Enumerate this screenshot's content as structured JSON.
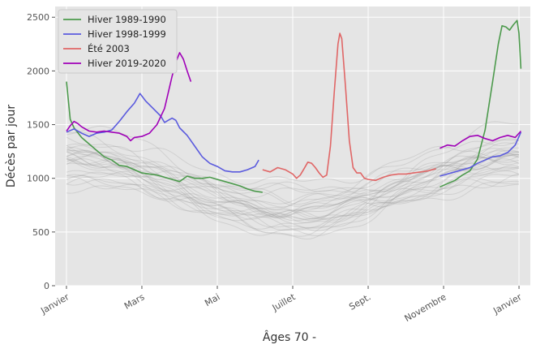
{
  "chart_data": {
    "type": "line",
    "xlabel": "Âges 70 -",
    "ylabel": "Décès par jour",
    "ylim": [
      0,
      2600
    ],
    "xlim": [
      -0.3,
      12.3
    ],
    "grid": true,
    "legend_position": "top-left",
    "x_ticks": [
      {
        "label": "Janvier",
        "x": 0
      },
      {
        "label": "Mars",
        "x": 2
      },
      {
        "label": "Mai",
        "x": 4
      },
      {
        "label": "Juillet",
        "x": 6
      },
      {
        "label": "Sept.",
        "x": 8
      },
      {
        "label": "Novembre",
        "x": 10
      },
      {
        "label": "Janvier",
        "x": 12
      }
    ],
    "y_ticks": [
      0,
      500,
      1000,
      1500,
      2000,
      2500
    ],
    "series": [
      {
        "name": "Hiver 1989-1990",
        "color": "#4c9a4c",
        "segments": [
          [
            [
              0,
              1900
            ],
            [
              0.1,
              1550
            ],
            [
              0.2,
              1470
            ],
            [
              0.4,
              1380
            ],
            [
              0.6,
              1320
            ],
            [
              0.8,
              1260
            ],
            [
              1.0,
              1200
            ],
            [
              1.2,
              1170
            ],
            [
              1.4,
              1120
            ],
            [
              1.6,
              1110
            ],
            [
              1.8,
              1080
            ],
            [
              2.0,
              1050
            ],
            [
              2.2,
              1040
            ],
            [
              2.4,
              1030
            ],
            [
              2.6,
              1010
            ],
            [
              2.8,
              990
            ],
            [
              3.0,
              970
            ],
            [
              3.2,
              1020
            ],
            [
              3.4,
              1000
            ],
            [
              3.6,
              1000
            ],
            [
              3.8,
              1010
            ],
            [
              4.0,
              990
            ],
            [
              4.2,
              970
            ],
            [
              4.4,
              950
            ],
            [
              4.6,
              930
            ],
            [
              4.8,
              900
            ],
            [
              5.0,
              880
            ],
            [
              5.2,
              870
            ]
          ],
          [
            [
              9.9,
              920
            ],
            [
              10.1,
              950
            ],
            [
              10.3,
              980
            ],
            [
              10.5,
              1030
            ],
            [
              10.7,
              1070
            ],
            [
              10.9,
              1180
            ],
            [
              11.1,
              1450
            ],
            [
              11.3,
              1900
            ],
            [
              11.45,
              2250
            ],
            [
              11.55,
              2420
            ],
            [
              11.65,
              2410
            ],
            [
              11.75,
              2380
            ],
            [
              11.85,
              2430
            ],
            [
              11.95,
              2470
            ],
            [
              12.0,
              2350
            ],
            [
              12.05,
              2020
            ]
          ]
        ]
      },
      {
        "name": "Hiver 1998-1999",
        "color": "#5b5bde",
        "segments": [
          [
            [
              0,
              1430
            ],
            [
              0.2,
              1460
            ],
            [
              0.4,
              1420
            ],
            [
              0.6,
              1390
            ],
            [
              0.8,
              1420
            ],
            [
              1.0,
              1430
            ],
            [
              1.2,
              1450
            ],
            [
              1.4,
              1530
            ],
            [
              1.6,
              1620
            ],
            [
              1.8,
              1700
            ],
            [
              1.95,
              1790
            ],
            [
              2.1,
              1720
            ],
            [
              2.3,
              1650
            ],
            [
              2.5,
              1580
            ],
            [
              2.6,
              1520
            ],
            [
              2.7,
              1540
            ],
            [
              2.8,
              1560
            ],
            [
              2.9,
              1540
            ],
            [
              3.0,
              1470
            ],
            [
              3.2,
              1400
            ],
            [
              3.4,
              1300
            ],
            [
              3.6,
              1200
            ],
            [
              3.8,
              1140
            ],
            [
              4.0,
              1110
            ],
            [
              4.2,
              1070
            ],
            [
              4.4,
              1060
            ],
            [
              4.6,
              1060
            ],
            [
              4.8,
              1080
            ],
            [
              5.0,
              1110
            ],
            [
              5.1,
              1170
            ]
          ],
          [
            [
              9.9,
              1020
            ],
            [
              10.1,
              1040
            ],
            [
              10.3,
              1060
            ],
            [
              10.5,
              1080
            ],
            [
              10.7,
              1100
            ],
            [
              10.9,
              1140
            ],
            [
              11.1,
              1170
            ],
            [
              11.3,
              1200
            ],
            [
              11.5,
              1210
            ],
            [
              11.7,
              1240
            ],
            [
              11.9,
              1310
            ],
            [
              12.05,
              1430
            ]
          ]
        ]
      },
      {
        "name": "Été 2003",
        "color": "#e06666",
        "segments": [
          [
            [
              5.2,
              1080
            ],
            [
              5.4,
              1060
            ],
            [
              5.6,
              1100
            ],
            [
              5.8,
              1080
            ],
            [
              6.0,
              1040
            ],
            [
              6.1,
              1000
            ],
            [
              6.2,
              1030
            ],
            [
              6.3,
              1090
            ],
            [
              6.4,
              1150
            ],
            [
              6.5,
              1140
            ],
            [
              6.6,
              1100
            ],
            [
              6.7,
              1050
            ],
            [
              6.8,
              1010
            ],
            [
              6.9,
              1030
            ],
            [
              7.0,
              1300
            ],
            [
              7.1,
              1800
            ],
            [
              7.2,
              2250
            ],
            [
              7.25,
              2350
            ],
            [
              7.3,
              2300
            ],
            [
              7.4,
              1850
            ],
            [
              7.5,
              1350
            ],
            [
              7.6,
              1100
            ],
            [
              7.7,
              1050
            ],
            [
              7.8,
              1050
            ],
            [
              7.9,
              1000
            ],
            [
              8.0,
              990
            ],
            [
              8.2,
              980
            ],
            [
              8.4,
              1010
            ],
            [
              8.6,
              1030
            ],
            [
              8.8,
              1040
            ],
            [
              9.0,
              1040
            ],
            [
              9.2,
              1050
            ],
            [
              9.4,
              1060
            ],
            [
              9.6,
              1070
            ],
            [
              9.8,
              1090
            ]
          ]
        ]
      },
      {
        "name": "Hiver 2019-2020",
        "color": "#a000b8",
        "segments": [
          [
            [
              0,
              1440
            ],
            [
              0.1,
              1490
            ],
            [
              0.2,
              1530
            ],
            [
              0.3,
              1510
            ],
            [
              0.4,
              1480
            ],
            [
              0.6,
              1440
            ],
            [
              0.8,
              1430
            ],
            [
              1.0,
              1440
            ],
            [
              1.2,
              1430
            ],
            [
              1.4,
              1420
            ],
            [
              1.6,
              1390
            ],
            [
              1.7,
              1350
            ],
            [
              1.8,
              1380
            ],
            [
              2.0,
              1390
            ],
            [
              2.2,
              1420
            ],
            [
              2.4,
              1500
            ],
            [
              2.6,
              1650
            ],
            [
              2.8,
              1950
            ],
            [
              2.9,
              2080
            ],
            [
              3.0,
              2170
            ],
            [
              3.1,
              2110
            ],
            [
              3.2,
              2000
            ],
            [
              3.3,
              1900
            ]
          ],
          [
            [
              9.9,
              1280
            ],
            [
              10.1,
              1310
            ],
            [
              10.3,
              1300
            ],
            [
              10.5,
              1350
            ],
            [
              10.7,
              1390
            ],
            [
              10.9,
              1400
            ],
            [
              11.1,
              1370
            ],
            [
              11.3,
              1350
            ],
            [
              11.5,
              1380
            ],
            [
              11.7,
              1400
            ],
            [
              11.9,
              1380
            ],
            [
              12.05,
              1440
            ]
          ]
        ]
      }
    ]
  }
}
